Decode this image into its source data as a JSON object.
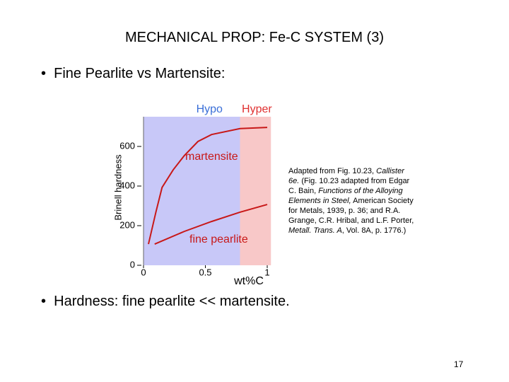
{
  "header": {
    "title": "MECHANICAL PROP:  Fe-C SYSTEM (3)"
  },
  "bullets": [
    "Fine Pearlite vs Martensite:",
    "Hardness:  fine pearlite << martensite."
  ],
  "caption": [
    {
      "text": "Adapted from Fig. 10.23, ",
      "italic": false
    },
    {
      "text": "Callister 6e.",
      "italic": true
    },
    {
      "text": " (Fig. 10.23 adapted from Edgar C. Bain, ",
      "italic": false
    },
    {
      "text": "Functions of the Alloying Elements in Steel,",
      "italic": true
    },
    {
      "text": " American Society for Metals, 1939, p. 36; and R.A. Grange, C.R. Hribal, and L.F. Porter, ",
      "italic": false
    },
    {
      "text": "Metall. Trans. A",
      "italic": true
    },
    {
      "text": ", Vol. 8A, p. 1776.)",
      "italic": false
    }
  ],
  "page_number": "17",
  "chart_data": {
    "type": "line",
    "x_label": "wt%C",
    "y_label": "Brinell hardness",
    "xlim": [
      0,
      1.03
    ],
    "ylim": [
      0,
      750
    ],
    "xticks": [
      0,
      0.5,
      1
    ],
    "yticks": [
      0,
      200,
      400,
      600
    ],
    "regions": [
      {
        "name": "Hypo",
        "from": 0,
        "to": 0.78,
        "color": "#c8c8f8",
        "label_color": "#3a6fd8"
      },
      {
        "name": "Hyper",
        "from": 0.78,
        "to": 1.03,
        "color": "#f8c8c8",
        "label_color": "#e03030"
      }
    ],
    "series": [
      {
        "name": "martensite",
        "color": "#c81818",
        "x": [
          0.04,
          0.1,
          0.15,
          0.24,
          0.33,
          0.44,
          0.55,
          0.78,
          1.0
        ],
        "values": [
          107,
          268,
          393,
          482,
          554,
          625,
          660,
          690,
          696
        ]
      },
      {
        "name": "fine pearlite",
        "color": "#c81818",
        "x": [
          0.09,
          0.33,
          0.55,
          0.78,
          1.0
        ],
        "values": [
          107,
          171,
          221,
          268,
          307
        ]
      }
    ]
  }
}
